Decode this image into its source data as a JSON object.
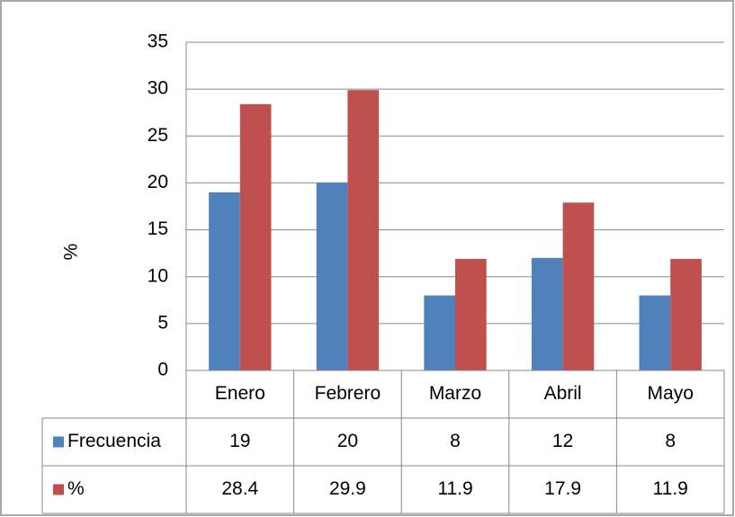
{
  "chart_data": {
    "type": "bar",
    "y_label": "%",
    "categories": [
      "Enero",
      "Febrero",
      "Marzo",
      "Abril",
      "Mayo"
    ],
    "series": [
      {
        "name": "Frecuencia",
        "color": "#4f81bd",
        "values": [
          19,
          20,
          8,
          12,
          8
        ]
      },
      {
        "name": "%",
        "color": "#c0504d",
        "values": [
          28.4,
          29.9,
          11.9,
          17.9,
          11.9
        ]
      }
    ],
    "ylim": [
      0,
      35
    ],
    "yticks": [
      0,
      5,
      10,
      15,
      20,
      25,
      30,
      35
    ],
    "grid": true,
    "data_table": true
  }
}
